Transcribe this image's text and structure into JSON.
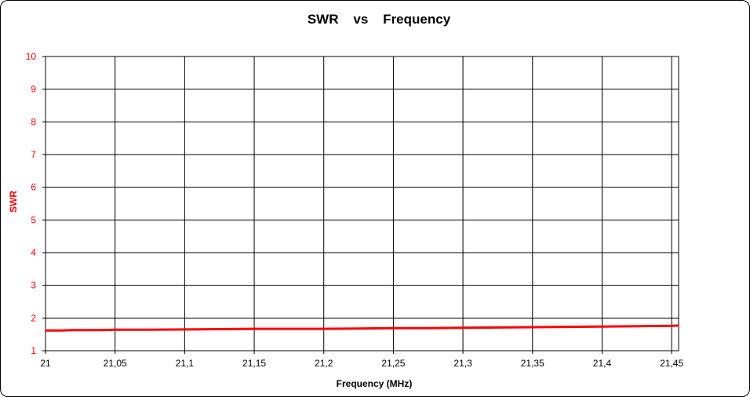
{
  "chart_data": {
    "type": "line",
    "title": "SWR    vs    Frequency",
    "xlabel": "Frequency (MHz)",
    "ylabel": "SWR",
    "xlim": [
      21,
      21.455
    ],
    "ylim": [
      1,
      10
    ],
    "grid": true,
    "legend": "none",
    "x_ticks": [
      21,
      21.05,
      21.1,
      21.15,
      21.2,
      21.25,
      21.3,
      21.35,
      21.4,
      21.45
    ],
    "x_tick_labels": [
      "21",
      "21,05",
      "21,1",
      "21,15",
      "21,2",
      "21,25",
      "21,3",
      "21,35",
      "21,4",
      "21,45"
    ],
    "y_ticks": [
      1,
      2,
      3,
      4,
      5,
      6,
      7,
      8,
      9,
      10
    ],
    "y_tick_labels": [
      "1",
      "2",
      "3",
      "4",
      "5",
      "6",
      "7",
      "8",
      "9",
      "10"
    ],
    "colors": {
      "series": "#ff0000",
      "yaxis_text": "#ff0000",
      "grid": "#000000"
    },
    "series": [
      {
        "x": [
          21.0,
          21.01,
          21.02,
          21.03,
          21.04,
          21.05,
          21.075,
          21.1,
          21.125,
          21.15,
          21.175,
          21.2,
          21.225,
          21.25,
          21.275,
          21.3,
          21.325,
          21.35,
          21.375,
          21.4,
          21.425,
          21.45,
          21.455
        ],
        "values": [
          1.62,
          1.62,
          1.63,
          1.63,
          1.63,
          1.64,
          1.64,
          1.65,
          1.66,
          1.67,
          1.67,
          1.67,
          1.68,
          1.69,
          1.69,
          1.7,
          1.71,
          1.72,
          1.73,
          1.74,
          1.75,
          1.76,
          1.77
        ]
      }
    ]
  }
}
